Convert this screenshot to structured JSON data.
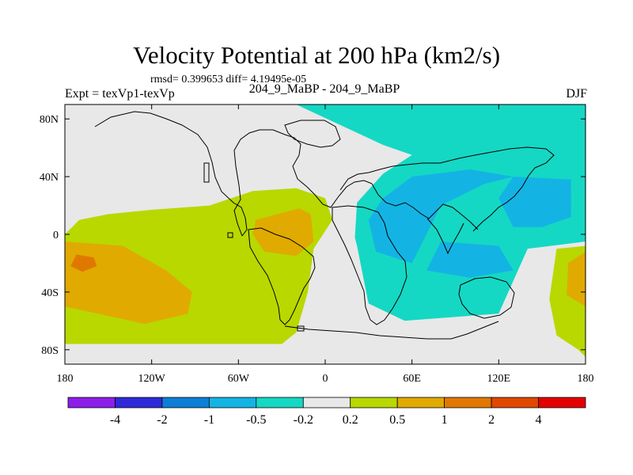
{
  "header": {
    "title": "Velocity Potential at 200 hPa (km2/s)",
    "stats": "rmsd= 0.399653 diff= 4.19495e-05",
    "left_label": "Expt = texVp1-texVp",
    "center_label": "204_9_MaBP - 204_9_MaBP",
    "right_label": "DJF"
  },
  "chart_data": {
    "type": "heatmap",
    "projection": "cylindrical-equidistant",
    "xlim": [
      -180,
      180
    ],
    "ylim": [
      -90,
      90
    ],
    "x_ticks": [
      {
        "value": -180,
        "label": "180"
      },
      {
        "value": -120,
        "label": "120W"
      },
      {
        "value": -60,
        "label": "60W"
      },
      {
        "value": 0,
        "label": "0"
      },
      {
        "value": 60,
        "label": "60E"
      },
      {
        "value": 120,
        "label": "120E"
      },
      {
        "value": 180,
        "label": "180"
      }
    ],
    "y_ticks": [
      {
        "value": 80,
        "label": "80N"
      },
      {
        "value": 40,
        "label": "40N"
      },
      {
        "value": 0,
        "label": "0"
      },
      {
        "value": -40,
        "label": "40S"
      },
      {
        "value": -80,
        "label": "80S"
      }
    ],
    "colorbar": {
      "levels": [
        "-4",
        "-2",
        "-1",
        "-0.5",
        "-0.2",
        "0.2",
        "0.5",
        "1",
        "2",
        "4"
      ],
      "colors": [
        "#8d1eea",
        "#2f2ad8",
        "#0d7ed6",
        "#13b4e4",
        "#14d8c4",
        "#e8e8e8",
        "#b8d800",
        "#e0aa00",
        "#e07800",
        "#e04800",
        "#e20000"
      ]
    },
    "regions": [
      {
        "name": "northern-band",
        "bin": "-0.5..-0.2",
        "color": "#14d8c4",
        "points": [
          [
            -180,
            90
          ],
          [
            180,
            90
          ],
          [
            180,
            -5
          ],
          [
            140,
            -10
          ],
          [
            120,
            -55
          ],
          [
            55,
            -60
          ],
          [
            30,
            -48
          ],
          [
            20,
            -10
          ],
          [
            22,
            22
          ],
          [
            40,
            42
          ],
          [
            60,
            55
          ],
          [
            40,
            62
          ],
          [
            -20,
            90
          ],
          [
            -50,
            90
          ]
        ]
      },
      {
        "name": "neutral-arctic",
        "bin": "-0.2..0.2",
        "color": "#e8e8e8",
        "points": [
          [
            -164,
            82
          ],
          [
            -145,
            85
          ],
          [
            -75,
            84
          ],
          [
            -30,
            82
          ],
          [
            -15,
            74
          ],
          [
            -5,
            62
          ],
          [
            10,
            58
          ],
          [
            25,
            50
          ],
          [
            30,
            38
          ],
          [
            -40,
            32
          ],
          [
            -80,
            28
          ],
          [
            -110,
            20
          ],
          [
            -160,
            17
          ],
          [
            -170,
            10
          ],
          [
            -180,
            0
          ],
          [
            -180,
            15
          ],
          [
            -170,
            38
          ],
          [
            -160,
            58
          ],
          [
            -162,
            74
          ]
        ]
      },
      {
        "name": "neutral-atlantic",
        "bin": "-0.2..0.2",
        "color": "#e8e8e8",
        "points": [
          [
            -15,
            15
          ],
          [
            5,
            15
          ],
          [
            18,
            8
          ],
          [
            22,
            -8
          ],
          [
            30,
            -48
          ],
          [
            55,
            -60
          ],
          [
            120,
            -55
          ],
          [
            140,
            -10
          ],
          [
            160,
            -8
          ],
          [
            180,
            -5
          ],
          [
            180,
            -90
          ],
          [
            -5,
            -90
          ],
          [
            -12,
            -40
          ],
          [
            -8,
            -15
          ]
        ]
      },
      {
        "name": "neutral-southwest",
        "bin": "-0.2..0.2",
        "color": "#e8e8e8",
        "points": [
          [
            -180,
            -76
          ],
          [
            -40,
            -76
          ],
          [
            -40,
            -90
          ],
          [
            -180,
            -90
          ]
        ]
      },
      {
        "name": "pacific-positive",
        "bin": "0.2..0.5",
        "color": "#b8d800",
        "points": [
          [
            -180,
            0
          ],
          [
            -170,
            10
          ],
          [
            -150,
            14
          ],
          [
            -120,
            17
          ],
          [
            -80,
            20
          ],
          [
            -50,
            30
          ],
          [
            -20,
            32
          ],
          [
            0,
            25
          ],
          [
            5,
            10
          ],
          [
            -8,
            -10
          ],
          [
            -12,
            -40
          ],
          [
            -20,
            -68
          ],
          [
            -30,
            -76
          ],
          [
            -180,
            -76
          ]
        ]
      },
      {
        "name": "pacific-positive-core",
        "bin": "0.5..1",
        "color": "#e0aa00",
        "points": [
          [
            -180,
            -5
          ],
          [
            -140,
            -8
          ],
          [
            -110,
            -25
          ],
          [
            -92,
            -40
          ],
          [
            -95,
            -55
          ],
          [
            -125,
            -62
          ],
          [
            -180,
            -50
          ]
        ]
      },
      {
        "name": "pacific-strong-core",
        "bin": "1..2",
        "color": "#e07800",
        "points": [
          [
            -172,
            -14
          ],
          [
            -160,
            -16
          ],
          [
            -158,
            -22
          ],
          [
            -168,
            -26
          ],
          [
            -176,
            -22
          ]
        ]
      },
      {
        "name": "atlantic-positive-core",
        "bin": "0.5..1",
        "color": "#e0aa00",
        "points": [
          [
            -48,
            10
          ],
          [
            -18,
            18
          ],
          [
            -10,
            14
          ],
          [
            -8,
            -5
          ],
          [
            -20,
            -15
          ],
          [
            -42,
            -12
          ],
          [
            -50,
            0
          ]
        ]
      },
      {
        "name": "indian-negative-west",
        "bin": "-1..-0.5",
        "color": "#13b4e4",
        "points": [
          [
            60,
            -20
          ],
          [
            70,
            0
          ],
          [
            80,
            20
          ],
          [
            110,
            35
          ],
          [
            130,
            40
          ],
          [
            100,
            45
          ],
          [
            60,
            40
          ],
          [
            40,
            25
          ],
          [
            30,
            10
          ],
          [
            35,
            -12
          ]
        ]
      },
      {
        "name": "indian-negative-south",
        "bin": "-1..-0.5",
        "color": "#13b4e4",
        "points": [
          [
            80,
            -5
          ],
          [
            120,
            -8
          ],
          [
            130,
            -25
          ],
          [
            100,
            -30
          ],
          [
            70,
            -25
          ]
        ]
      },
      {
        "name": "pacific-negative-east",
        "bin": "-1..-0.5",
        "color": "#13b4e4",
        "points": [
          [
            130,
            5
          ],
          [
            150,
            5
          ],
          [
            170,
            12
          ],
          [
            170,
            38
          ],
          [
            130,
            40
          ],
          [
            120,
            25
          ]
        ]
      },
      {
        "name": "southeast-positive",
        "bin": "0.2..0.5",
        "color": "#b8d800",
        "points": [
          [
            180,
            -8
          ],
          [
            160,
            -10
          ],
          [
            155,
            -45
          ],
          [
            160,
            -70
          ],
          [
            175,
            -80
          ],
          [
            180,
            -85
          ]
        ]
      },
      {
        "name": "southeast-positive-core",
        "bin": "0.5..1",
        "color": "#e0aa00",
        "points": [
          [
            180,
            -12
          ],
          [
            168,
            -20
          ],
          [
            167,
            -42
          ],
          [
            180,
            -50
          ]
        ]
      }
    ]
  }
}
